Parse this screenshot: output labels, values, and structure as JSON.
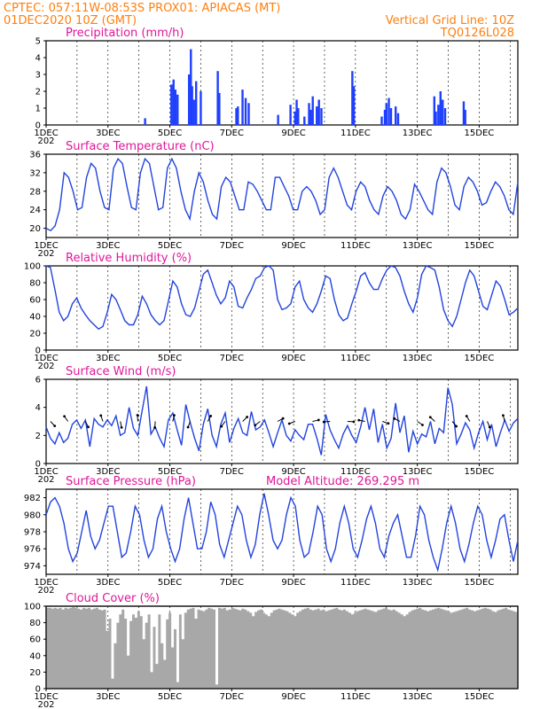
{
  "header": {
    "line1_left": "CPTEC:  057:11W-08:53S   PROX01: APIACAS (MT)",
    "line2_left": "01DEC2020 10Z (GMT)",
    "line2_right": "Vertical Grid Line: 10Z",
    "line3_right": "TQ0126L028"
  },
  "x_ticks": [
    "1DEC",
    "3DEC",
    "5DEC",
    "7DEC",
    "9DEC",
    "11DEC",
    "13DEC",
    "15DEC"
  ],
  "x_partial": "202",
  "colors": {
    "line": "#2244dd",
    "bar": "#1f3fff",
    "cloud": "#a8a8a8",
    "header": "#ff7f0e",
    "title": "#e0179a"
  },
  "chart_data": [
    {
      "type": "bar",
      "title": "Precipitation  (mm/h)",
      "ylim": [
        0,
        5
      ],
      "yticks": [
        "0",
        "1",
        "2",
        "3",
        "4",
        "5"
      ],
      "series": [
        {
          "name": "",
          "values_note": "hourly spikes",
          "points": [
            [
              3.2,
              0.4
            ],
            [
              4.05,
              2.4
            ],
            [
              4.12,
              2.7
            ],
            [
              4.18,
              2.1
            ],
            [
              4.25,
              1.8
            ],
            [
              4.62,
              3.0
            ],
            [
              4.68,
              4.5
            ],
            [
              4.72,
              2.3
            ],
            [
              4.78,
              1.5
            ],
            [
              4.85,
              2.6
            ],
            [
              5.0,
              2.0
            ],
            [
              5.55,
              3.2
            ],
            [
              5.6,
              1.9
            ],
            [
              6.15,
              1.0
            ],
            [
              6.2,
              1.1
            ],
            [
              6.35,
              2.1
            ],
            [
              6.45,
              1.6
            ],
            [
              6.55,
              1.3
            ],
            [
              7.5,
              0.6
            ],
            [
              7.9,
              1.2
            ],
            [
              8.05,
              0.8
            ],
            [
              8.1,
              1.5
            ],
            [
              8.15,
              1.0
            ],
            [
              8.35,
              0.5
            ],
            [
              8.5,
              1.3
            ],
            [
              8.55,
              0.9
            ],
            [
              8.62,
              1.7
            ],
            [
              8.75,
              1.1
            ],
            [
              8.82,
              1.5
            ],
            [
              8.9,
              1.0
            ],
            [
              9.9,
              3.2
            ],
            [
              9.95,
              2.3
            ],
            [
              10.85,
              0.5
            ],
            [
              10.95,
              0.9
            ],
            [
              11.0,
              1.3
            ],
            [
              11.08,
              1.6
            ],
            [
              11.15,
              1.0
            ],
            [
              11.3,
              1.1
            ],
            [
              11.38,
              0.7
            ],
            [
              12.55,
              1.7
            ],
            [
              12.6,
              0.8
            ],
            [
              12.68,
              1.2
            ],
            [
              12.75,
              2.0
            ],
            [
              12.82,
              1.5
            ],
            [
              12.9,
              1.0
            ],
            [
              13.5,
              1.4
            ],
            [
              13.55,
              0.9
            ]
          ]
        }
      ]
    },
    {
      "type": "line",
      "title": "Surface Temperature  (nC)",
      "ylim": [
        18,
        36
      ],
      "yticks": [
        "20",
        "24",
        "28",
        "32",
        "36"
      ],
      "series": [
        {
          "name": "",
          "values": [
            20,
            19.5,
            20.5,
            24,
            32,
            31,
            28,
            24,
            24.5,
            31,
            34,
            33,
            28,
            24.5,
            24,
            33,
            35,
            34,
            29,
            24.5,
            24,
            32,
            35,
            34,
            29,
            24,
            24.5,
            33,
            35,
            33,
            28,
            24,
            22,
            28,
            32,
            30,
            26,
            23,
            22,
            29,
            31,
            30,
            27,
            24,
            24,
            30,
            29.5,
            28,
            26,
            24,
            24,
            31,
            31,
            29,
            27,
            24,
            24,
            28,
            29,
            28,
            26,
            23,
            24,
            31,
            33,
            31,
            28,
            25,
            24,
            28,
            30,
            29,
            26,
            24,
            23,
            27,
            29,
            28,
            26,
            23,
            22,
            24,
            29.5,
            28,
            26,
            24,
            23,
            30,
            33,
            32,
            29,
            25,
            24,
            29,
            31,
            30,
            28,
            25,
            25.5,
            28,
            30,
            29,
            27,
            24,
            23,
            30
          ]
        }
      ]
    },
    {
      "type": "line",
      "title": "Relative Humidity  (%)",
      "ylim": [
        0,
        100
      ],
      "yticks": [
        "0",
        "20",
        "40",
        "60",
        "80",
        "100"
      ],
      "series": [
        {
          "name": "",
          "values": [
            100,
            98,
            72,
            45,
            35,
            40,
            55,
            62,
            50,
            42,
            35,
            30,
            25,
            28,
            45,
            66,
            60,
            48,
            35,
            30,
            30,
            42,
            64,
            55,
            42,
            35,
            30,
            35,
            58,
            82,
            75,
            55,
            42,
            40,
            50,
            70,
            90,
            95,
            80,
            65,
            55,
            62,
            82,
            75,
            52,
            50,
            62,
            72,
            85,
            88,
            98,
            100,
            95,
            60,
            48,
            50,
            55,
            75,
            82,
            60,
            50,
            45,
            55,
            70,
            88,
            85,
            60,
            42,
            35,
            38,
            55,
            70,
            88,
            92,
            80,
            72,
            72,
            85,
            95,
            100,
            98,
            88,
            70,
            55,
            45,
            62,
            90,
            100,
            98,
            95,
            75,
            48,
            35,
            28,
            40,
            60,
            80,
            95,
            88,
            70,
            52,
            48,
            65,
            82,
            76,
            60,
            42,
            45,
            50
          ]
        }
      ]
    },
    {
      "type": "line",
      "title": "Surface Wind  (m/s)",
      "ylim": [
        0,
        6
      ],
      "yticks": [
        "0",
        "2",
        "4",
        "6"
      ],
      "series": [
        {
          "name": "",
          "values": [
            2.6,
            1.8,
            1.4,
            2.2,
            1.5,
            1.8,
            2.8,
            3.1,
            2.5,
            3.1,
            1.2,
            3.2,
            2.8,
            2.6,
            3.1,
            2.7,
            3.4,
            2.0,
            2.2,
            4.0,
            2.5,
            2.0,
            3.8,
            5.5,
            2.1,
            2.6,
            1.8,
            1.2,
            3.1,
            3.6,
            2.4,
            1.3,
            4.2,
            2.9,
            1.8,
            0.9,
            2.8,
            3.9,
            2.0,
            1.2,
            2.8,
            3.6,
            1.5,
            2.5,
            3.2,
            2.2,
            2.0,
            3.7,
            2.4,
            2.6,
            3.1,
            2.2,
            1.2,
            2.2,
            3.1,
            2.0,
            1.6,
            2.4,
            2.0,
            1.7,
            2.8,
            2.8,
            1.8,
            0.6,
            3.5,
            2.4,
            1.7,
            1.1,
            2.1,
            2.7,
            2.0,
            1.5,
            2.6,
            4.0,
            2.4,
            3.9,
            1.5,
            2.8,
            1.1,
            1.8,
            4.3,
            2.2,
            3.4,
            0.8,
            2.3,
            1.4,
            2.1,
            1.9,
            3.0,
            1.4,
            2.5,
            2.2,
            5.4,
            4.2,
            1.4,
            2.1,
            2.9,
            2.4,
            1.1,
            2.2,
            3.0,
            1.7,
            2.8,
            1.2,
            2.2,
            3.1,
            2.3,
            2.9,
            3.2
          ]
        }
      ]
    },
    {
      "type": "line",
      "title": "Surface Pressure  (hPa)",
      "subtitle": "Model Altitude: 269.295  m",
      "ylim": [
        973,
        983
      ],
      "yticks": [
        "974",
        "976",
        "978",
        "980",
        "982"
      ],
      "series": [
        {
          "name": "",
          "values": [
            980,
            981.5,
            982,
            981,
            979,
            976,
            974.5,
            975.5,
            978,
            980.5,
            977.5,
            976,
            977,
            979,
            981,
            981,
            978,
            975,
            975.5,
            978,
            981,
            980,
            977,
            975,
            976,
            979.5,
            981,
            978,
            976,
            974.5,
            976,
            979.5,
            982,
            979,
            976,
            976,
            978,
            981.5,
            980,
            976.5,
            975,
            977,
            979,
            981,
            980,
            977,
            975,
            976.5,
            980,
            982.5,
            980,
            977,
            976,
            977,
            980,
            982,
            981,
            977,
            975,
            975.5,
            978,
            981,
            980,
            976,
            974.5,
            976,
            979,
            981,
            979,
            976,
            975,
            977,
            979.5,
            981,
            979,
            976,
            975,
            977.5,
            979,
            980,
            977.5,
            975,
            975,
            977.5,
            981,
            980,
            977,
            975,
            973.5,
            976,
            979,
            981,
            979,
            976,
            974.5,
            976.5,
            979,
            981,
            980,
            977,
            975,
            977,
            979.5,
            980,
            977,
            974.5,
            977
          ]
        }
      ]
    },
    {
      "type": "area",
      "title": "Cloud Cover  (%)",
      "ylim": [
        0,
        100
      ],
      "yticks": [
        "0",
        "20",
        "40",
        "60",
        "80",
        "100"
      ],
      "series": [
        {
          "name": "",
          "values": [
            98,
            98,
            97,
            98,
            97,
            98,
            96,
            98,
            97,
            98,
            99,
            98,
            97,
            96,
            98,
            97,
            98,
            96,
            97,
            98,
            96,
            95,
            96,
            70,
            85,
            12,
            55,
            80,
            90,
            96,
            85,
            40,
            82,
            90,
            86,
            94,
            88,
            60,
            80,
            90,
            20,
            75,
            30,
            90,
            55,
            35,
            84,
            92,
            50,
            72,
            8,
            90,
            60,
            92,
            96,
            97,
            98,
            85,
            96,
            95,
            94,
            96,
            98,
            97,
            96,
            5,
            98,
            97,
            98,
            95,
            96,
            98,
            97,
            96,
            95,
            97,
            96,
            94,
            92,
            88,
            93,
            95,
            96,
            92,
            90,
            88,
            92,
            95,
            96,
            97,
            96,
            95,
            94,
            92,
            90,
            88,
            92,
            94,
            96,
            97,
            98,
            96,
            95,
            96,
            97,
            95,
            96,
            94,
            95,
            96,
            97,
            98,
            96,
            95,
            96,
            94,
            92,
            90,
            92,
            94,
            95,
            96,
            97,
            96,
            95,
            94,
            93,
            95,
            96,
            97,
            98,
            96,
            95,
            96,
            94,
            92,
            90,
            88,
            90,
            93,
            95,
            96,
            97,
            98,
            96,
            95,
            94,
            95,
            96,
            97,
            98,
            97,
            96,
            95,
            94,
            92,
            93,
            94,
            95,
            96,
            97,
            98,
            96,
            95,
            94,
            95,
            96,
            97,
            98,
            97,
            96,
            94,
            93,
            95,
            96,
            97,
            98,
            96,
            95,
            94,
            93
          ]
        }
      ]
    }
  ]
}
